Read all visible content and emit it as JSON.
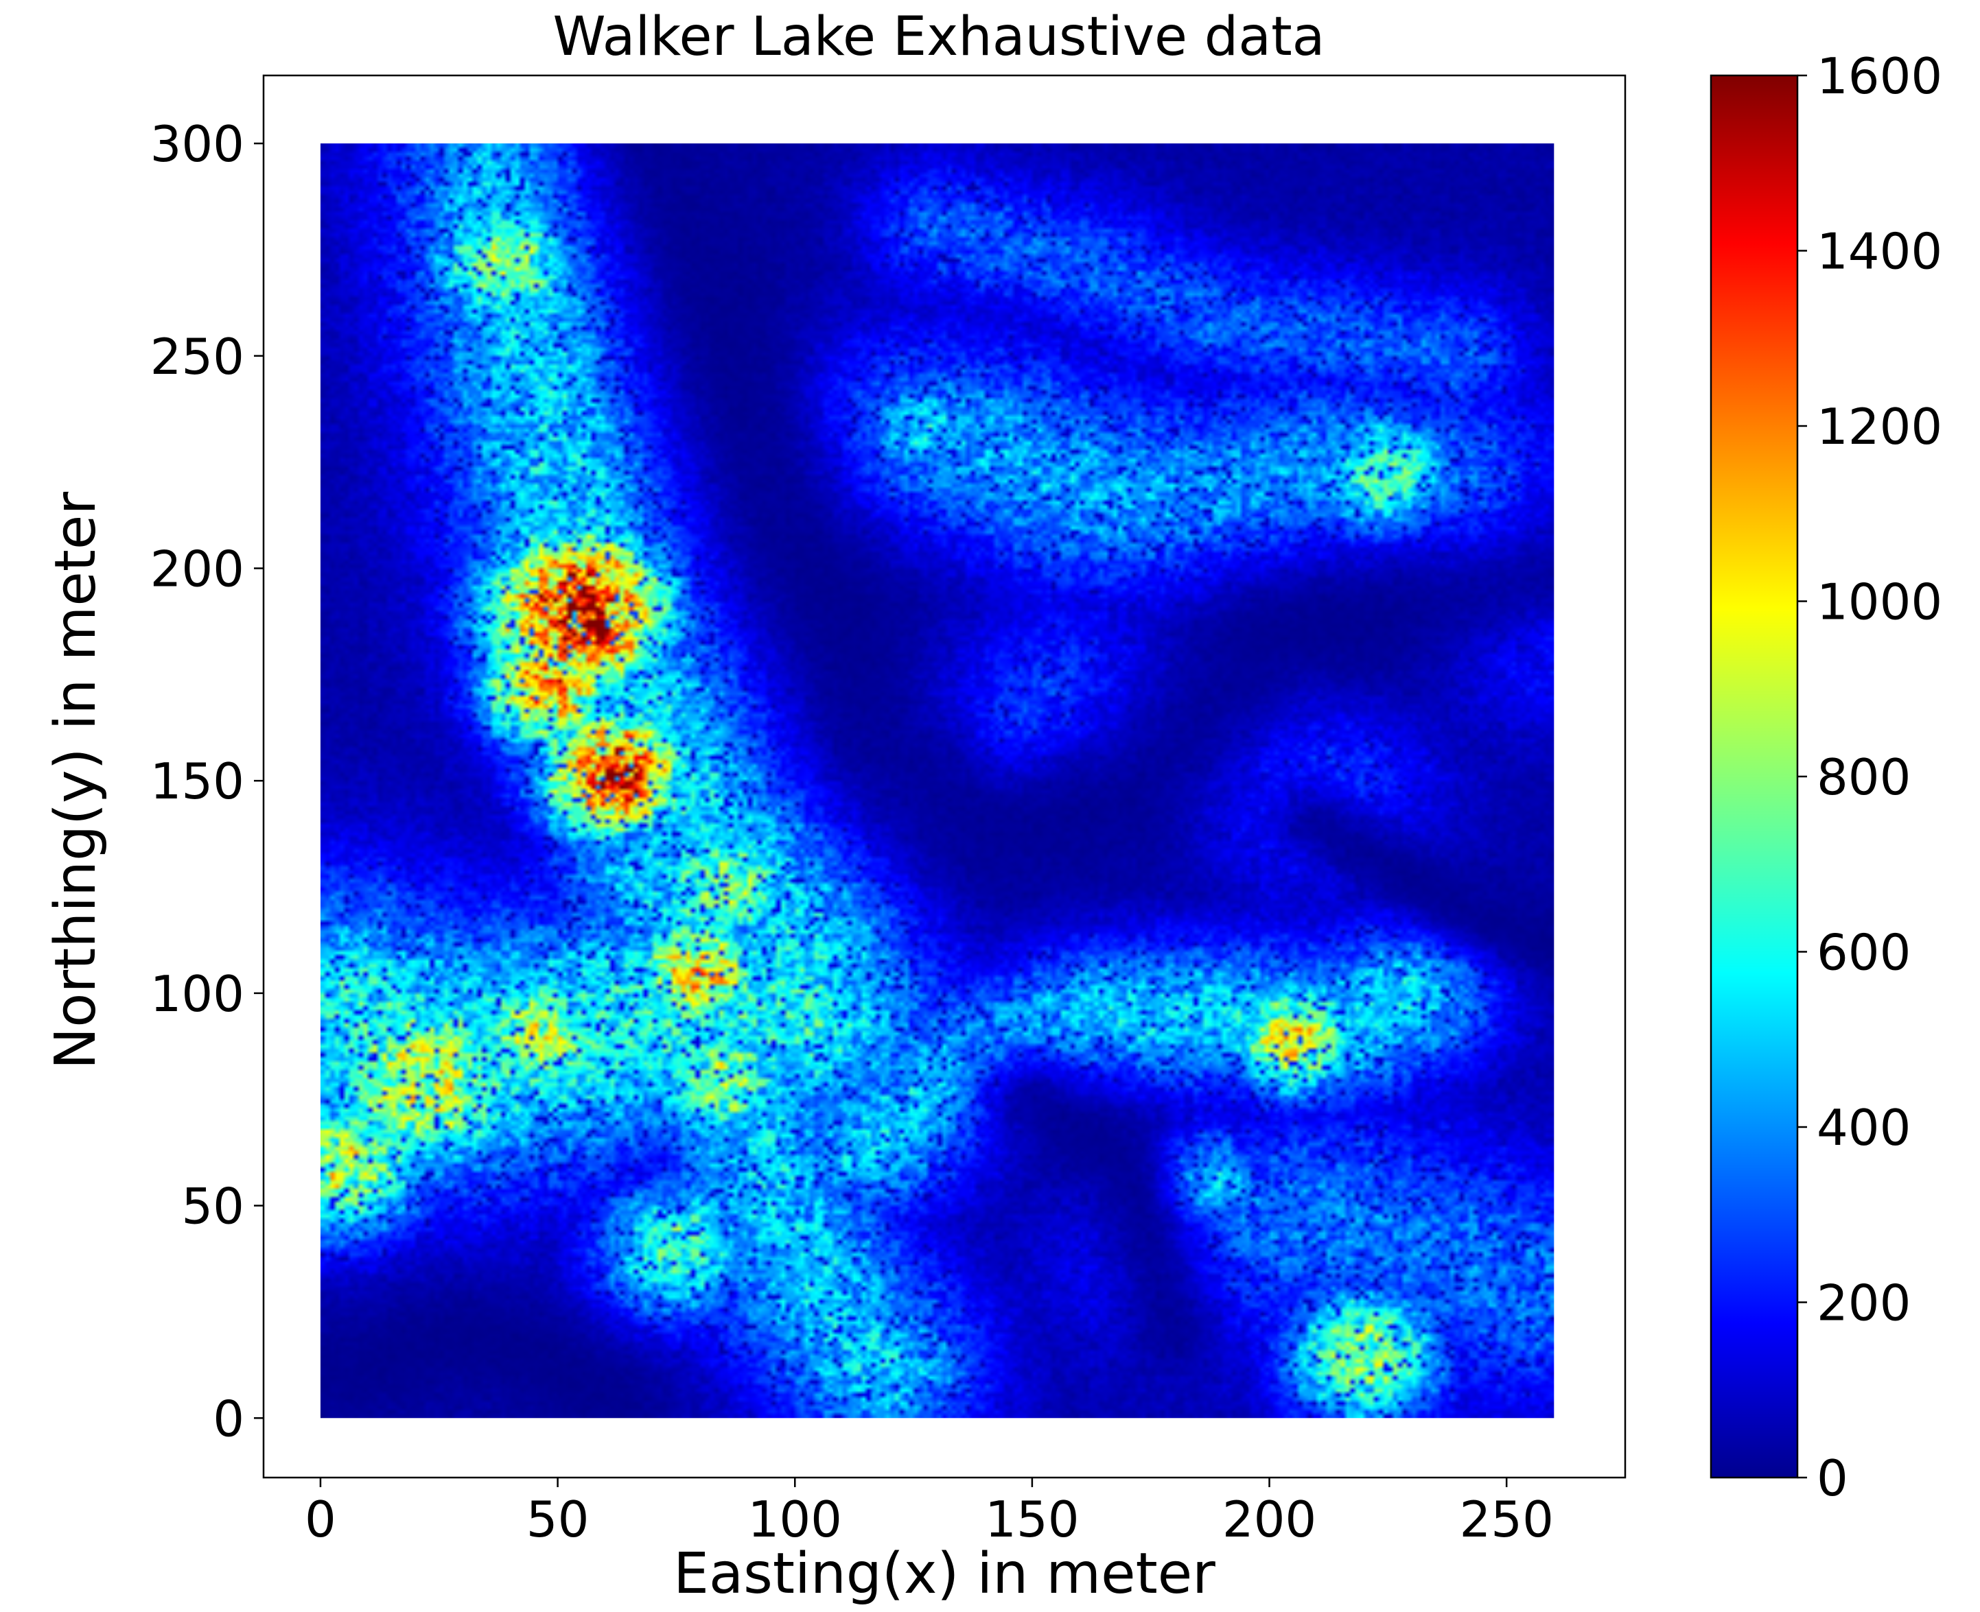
{
  "chart_data": {
    "type": "heatmap",
    "title": "Walker Lake Exhaustive data",
    "xlabel": "Easting(x) in meter",
    "ylabel": "Northing(y) in meter",
    "xlim": [
      -12,
      275
    ],
    "ylim": [
      -14,
      316
    ],
    "data_extent": {
      "x": [
        0,
        260
      ],
      "y": [
        0,
        300
      ]
    },
    "xticks": [
      0,
      50,
      100,
      150,
      200,
      250
    ],
    "xtick_labels": [
      "0",
      "50",
      "100",
      "150",
      "200",
      "250"
    ],
    "yticks": [
      0,
      50,
      100,
      150,
      200,
      250,
      300
    ],
    "ytick_labels": [
      "0",
      "50",
      "100",
      "150",
      "200",
      "250",
      "300"
    ],
    "colormap": "jet",
    "colorbar": {
      "range": [
        0,
        1600
      ],
      "ticks": [
        0,
        200,
        400,
        600,
        800,
        1000,
        1200,
        1400,
        1600
      ],
      "tick_labels": [
        "0",
        "200",
        "400",
        "600",
        "800",
        "1000",
        "1200",
        "1400",
        "1600"
      ]
    },
    "grid": false,
    "background_value": 60,
    "features": [
      {
        "kind": "band",
        "points": [
          [
            42,
            290
          ],
          [
            46,
            255
          ],
          [
            54,
            215
          ],
          [
            62,
            185
          ],
          [
            72,
            160
          ],
          [
            82,
            140
          ],
          [
            92,
            125
          ],
          [
            102,
            110
          ]
        ],
        "width": 38,
        "value": 560
      },
      {
        "kind": "band",
        "points": [
          [
            5,
            95
          ],
          [
            30,
            85
          ],
          [
            55,
            90
          ],
          [
            80,
            100
          ],
          [
            100,
            95
          ]
        ],
        "width": 45,
        "value": 620
      },
      {
        "kind": "band",
        "points": [
          [
            70,
            130
          ],
          [
            82,
            105
          ],
          [
            88,
            80
          ],
          [
            95,
            55
          ],
          [
            105,
            30
          ],
          [
            118,
            12
          ]
        ],
        "width": 32,
        "value": 520
      },
      {
        "kind": "band",
        "points": [
          [
            115,
            65
          ],
          [
            140,
            85
          ],
          [
            165,
            95
          ],
          [
            190,
            95
          ],
          [
            215,
            92
          ],
          [
            230,
            100
          ]
        ],
        "width": 26,
        "value": 540
      },
      {
        "kind": "band",
        "points": [
          [
            118,
            230
          ],
          [
            140,
            228
          ],
          [
            165,
            218
          ],
          [
            190,
            215
          ],
          [
            215,
            222
          ],
          [
            240,
            215
          ],
          [
            255,
            195
          ]
        ],
        "width": 35,
        "value": 470
      },
      {
        "kind": "band",
        "points": [
          [
            130,
            280
          ],
          [
            160,
            272
          ],
          [
            190,
            258
          ],
          [
            215,
            255
          ],
          [
            240,
            250
          ]
        ],
        "width": 22,
        "value": 340
      },
      {
        "kind": "band",
        "points": [
          [
            135,
            160
          ],
          [
            160,
            168
          ],
          [
            185,
            160
          ],
          [
            210,
            148
          ]
        ],
        "width": 35,
        "value": 330
      },
      {
        "kind": "band",
        "points": [
          [
            185,
            40
          ],
          [
            210,
            48
          ],
          [
            235,
            40
          ],
          [
            255,
            30
          ]
        ],
        "width": 38,
        "value": 380
      },
      {
        "kind": "blob",
        "x": 40,
        "y": 272,
        "r": 12,
        "value": 880
      },
      {
        "kind": "blob",
        "x": 55,
        "y": 190,
        "r": 14,
        "value": 1500
      },
      {
        "kind": "blob",
        "x": 48,
        "y": 172,
        "r": 10,
        "value": 1150
      },
      {
        "kind": "blob",
        "x": 62,
        "y": 152,
        "r": 11,
        "value": 1350
      },
      {
        "kind": "blob",
        "x": 85,
        "y": 125,
        "r": 12,
        "value": 800
      },
      {
        "kind": "blob",
        "x": 80,
        "y": 105,
        "r": 10,
        "value": 1050
      },
      {
        "kind": "blob",
        "x": 22,
        "y": 80,
        "r": 16,
        "value": 920
      },
      {
        "kind": "blob",
        "x": 5,
        "y": 60,
        "r": 12,
        "value": 900
      },
      {
        "kind": "blob",
        "x": 45,
        "y": 90,
        "r": 12,
        "value": 850
      },
      {
        "kind": "blob",
        "x": 85,
        "y": 80,
        "r": 12,
        "value": 800
      },
      {
        "kind": "blob",
        "x": 75,
        "y": 40,
        "r": 12,
        "value": 700
      },
      {
        "kind": "blob",
        "x": 205,
        "y": 90,
        "r": 10,
        "value": 950
      },
      {
        "kind": "blob",
        "x": 225,
        "y": 220,
        "r": 12,
        "value": 800
      },
      {
        "kind": "blob",
        "x": 220,
        "y": 15,
        "r": 12,
        "value": 820
      },
      {
        "kind": "blob",
        "x": 125,
        "y": 232,
        "r": 10,
        "value": 650
      },
      {
        "kind": "blob",
        "x": 185,
        "y": 55,
        "r": 9,
        "value": 700
      },
      {
        "kind": "blob",
        "x": 145,
        "y": 160,
        "r": 14,
        "value": 420
      }
    ],
    "cold_zones": [
      {
        "points": [
          [
            70,
            300
          ],
          [
            80,
            270
          ],
          [
            90,
            240
          ],
          [
            100,
            210
          ],
          [
            112,
            185
          ],
          [
            120,
            160
          ],
          [
            140,
            140
          ],
          [
            170,
            145
          ],
          [
            200,
            185
          ],
          [
            230,
            190
          ],
          [
            262,
            200
          ]
        ],
        "width": 32
      },
      {
        "points": [
          [
            150,
            75
          ],
          [
            170,
            60
          ],
          [
            175,
            40
          ],
          [
            180,
            20
          ]
        ],
        "width": 20
      },
      {
        "points": [
          [
            5,
            10
          ],
          [
            30,
            20
          ],
          [
            45,
            15
          ],
          [
            60,
            5
          ]
        ],
        "width": 18
      },
      {
        "points": [
          [
            210,
            140
          ],
          [
            225,
            130
          ],
          [
            240,
            120
          ],
          [
            262,
            110
          ]
        ],
        "width": 14
      }
    ]
  }
}
